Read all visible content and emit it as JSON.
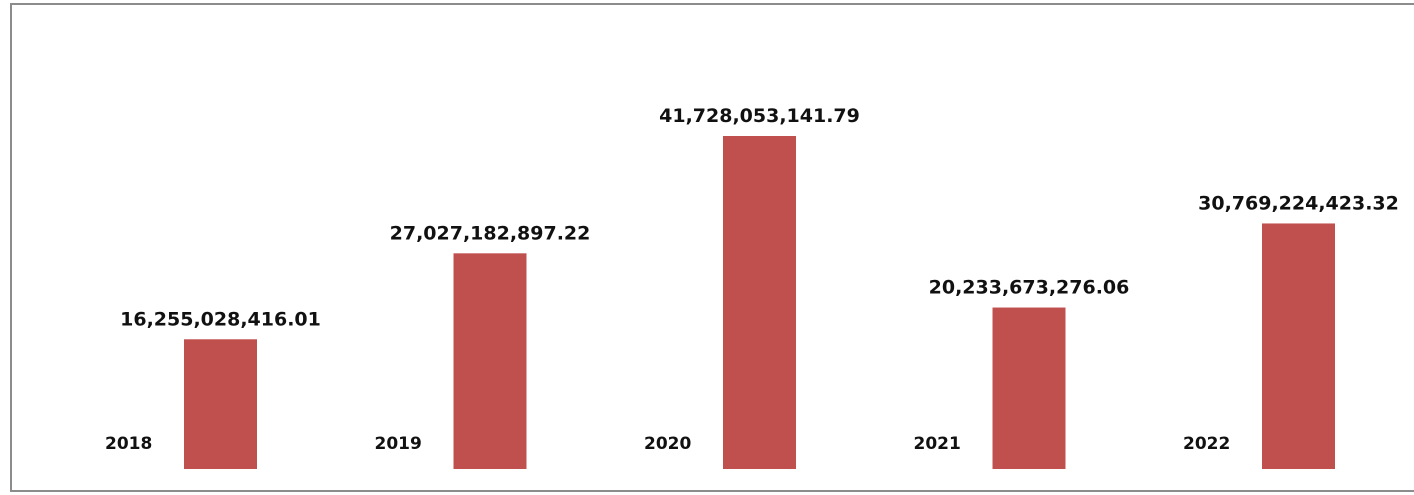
{
  "chart_data": {
    "type": "bar",
    "categories": [
      "2018",
      "2019",
      "2020",
      "2021",
      "2022"
    ],
    "values": [
      16255028416.01,
      27027182897.22,
      41728053141.79,
      20233673276.06,
      30769224423.32
    ],
    "value_labels": [
      "16,255,028,416.01",
      "27,027,182,897.22",
      "41,728,053,141.79",
      "20,233,673,276.06",
      "30,769,224,423.32"
    ],
    "title": "",
    "xlabel": "",
    "ylabel": "",
    "grid": false,
    "bar_color": "#c0504d"
  }
}
